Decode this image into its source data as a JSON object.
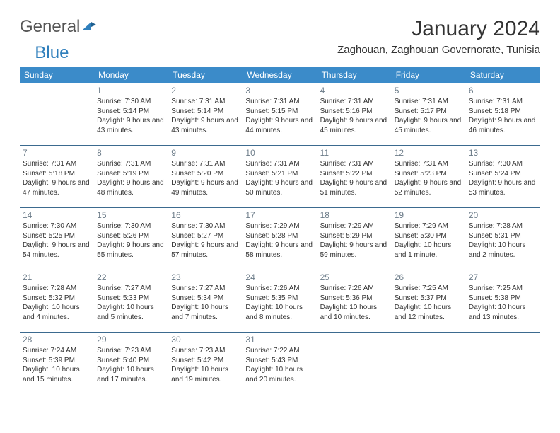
{
  "brand": {
    "part1": "General",
    "part2": "Blue"
  },
  "title": "January 2024",
  "location": "Zaghouan, Zaghouan Governorate, Tunisia",
  "colors": {
    "header_bg": "#3b8bc9",
    "header_text": "#ffffff",
    "row_border": "#3b6a8f",
    "daynum": "#6b7b88",
    "brand_blue": "#2f7fbc"
  },
  "typography": {
    "title_fontsize": 30,
    "location_fontsize": 15,
    "dayheader_fontsize": 12,
    "daynum_fontsize": 12,
    "body_fontsize": 10
  },
  "day_headers": [
    "Sunday",
    "Monday",
    "Tuesday",
    "Wednesday",
    "Thursday",
    "Friday",
    "Saturday"
  ],
  "weeks": [
    [
      {
        "num": "",
        "sunrise": "",
        "sunset": "",
        "daylight": ""
      },
      {
        "num": "1",
        "sunrise": "7:30 AM",
        "sunset": "5:14 PM",
        "daylight": "9 hours and 43 minutes."
      },
      {
        "num": "2",
        "sunrise": "7:31 AM",
        "sunset": "5:14 PM",
        "daylight": "9 hours and 43 minutes."
      },
      {
        "num": "3",
        "sunrise": "7:31 AM",
        "sunset": "5:15 PM",
        "daylight": "9 hours and 44 minutes."
      },
      {
        "num": "4",
        "sunrise": "7:31 AM",
        "sunset": "5:16 PM",
        "daylight": "9 hours and 45 minutes."
      },
      {
        "num": "5",
        "sunrise": "7:31 AM",
        "sunset": "5:17 PM",
        "daylight": "9 hours and 45 minutes."
      },
      {
        "num": "6",
        "sunrise": "7:31 AM",
        "sunset": "5:18 PM",
        "daylight": "9 hours and 46 minutes."
      }
    ],
    [
      {
        "num": "7",
        "sunrise": "7:31 AM",
        "sunset": "5:18 PM",
        "daylight": "9 hours and 47 minutes."
      },
      {
        "num": "8",
        "sunrise": "7:31 AM",
        "sunset": "5:19 PM",
        "daylight": "9 hours and 48 minutes."
      },
      {
        "num": "9",
        "sunrise": "7:31 AM",
        "sunset": "5:20 PM",
        "daylight": "9 hours and 49 minutes."
      },
      {
        "num": "10",
        "sunrise": "7:31 AM",
        "sunset": "5:21 PM",
        "daylight": "9 hours and 50 minutes."
      },
      {
        "num": "11",
        "sunrise": "7:31 AM",
        "sunset": "5:22 PM",
        "daylight": "9 hours and 51 minutes."
      },
      {
        "num": "12",
        "sunrise": "7:31 AM",
        "sunset": "5:23 PM",
        "daylight": "9 hours and 52 minutes."
      },
      {
        "num": "13",
        "sunrise": "7:30 AM",
        "sunset": "5:24 PM",
        "daylight": "9 hours and 53 minutes."
      }
    ],
    [
      {
        "num": "14",
        "sunrise": "7:30 AM",
        "sunset": "5:25 PM",
        "daylight": "9 hours and 54 minutes."
      },
      {
        "num": "15",
        "sunrise": "7:30 AM",
        "sunset": "5:26 PM",
        "daylight": "9 hours and 55 minutes."
      },
      {
        "num": "16",
        "sunrise": "7:30 AM",
        "sunset": "5:27 PM",
        "daylight": "9 hours and 57 minutes."
      },
      {
        "num": "17",
        "sunrise": "7:29 AM",
        "sunset": "5:28 PM",
        "daylight": "9 hours and 58 minutes."
      },
      {
        "num": "18",
        "sunrise": "7:29 AM",
        "sunset": "5:29 PM",
        "daylight": "9 hours and 59 minutes."
      },
      {
        "num": "19",
        "sunrise": "7:29 AM",
        "sunset": "5:30 PM",
        "daylight": "10 hours and 1 minute."
      },
      {
        "num": "20",
        "sunrise": "7:28 AM",
        "sunset": "5:31 PM",
        "daylight": "10 hours and 2 minutes."
      }
    ],
    [
      {
        "num": "21",
        "sunrise": "7:28 AM",
        "sunset": "5:32 PM",
        "daylight": "10 hours and 4 minutes."
      },
      {
        "num": "22",
        "sunrise": "7:27 AM",
        "sunset": "5:33 PM",
        "daylight": "10 hours and 5 minutes."
      },
      {
        "num": "23",
        "sunrise": "7:27 AM",
        "sunset": "5:34 PM",
        "daylight": "10 hours and 7 minutes."
      },
      {
        "num": "24",
        "sunrise": "7:26 AM",
        "sunset": "5:35 PM",
        "daylight": "10 hours and 8 minutes."
      },
      {
        "num": "25",
        "sunrise": "7:26 AM",
        "sunset": "5:36 PM",
        "daylight": "10 hours and 10 minutes."
      },
      {
        "num": "26",
        "sunrise": "7:25 AM",
        "sunset": "5:37 PM",
        "daylight": "10 hours and 12 minutes."
      },
      {
        "num": "27",
        "sunrise": "7:25 AM",
        "sunset": "5:38 PM",
        "daylight": "10 hours and 13 minutes."
      }
    ],
    [
      {
        "num": "28",
        "sunrise": "7:24 AM",
        "sunset": "5:39 PM",
        "daylight": "10 hours and 15 minutes."
      },
      {
        "num": "29",
        "sunrise": "7:23 AM",
        "sunset": "5:40 PM",
        "daylight": "10 hours and 17 minutes."
      },
      {
        "num": "30",
        "sunrise": "7:23 AM",
        "sunset": "5:42 PM",
        "daylight": "10 hours and 19 minutes."
      },
      {
        "num": "31",
        "sunrise": "7:22 AM",
        "sunset": "5:43 PM",
        "daylight": "10 hours and 20 minutes."
      },
      {
        "num": "",
        "sunrise": "",
        "sunset": "",
        "daylight": ""
      },
      {
        "num": "",
        "sunrise": "",
        "sunset": "",
        "daylight": ""
      },
      {
        "num": "",
        "sunrise": "",
        "sunset": "",
        "daylight": ""
      }
    ]
  ],
  "labels": {
    "sunrise": "Sunrise:",
    "sunset": "Sunset:",
    "daylight": "Daylight:"
  }
}
